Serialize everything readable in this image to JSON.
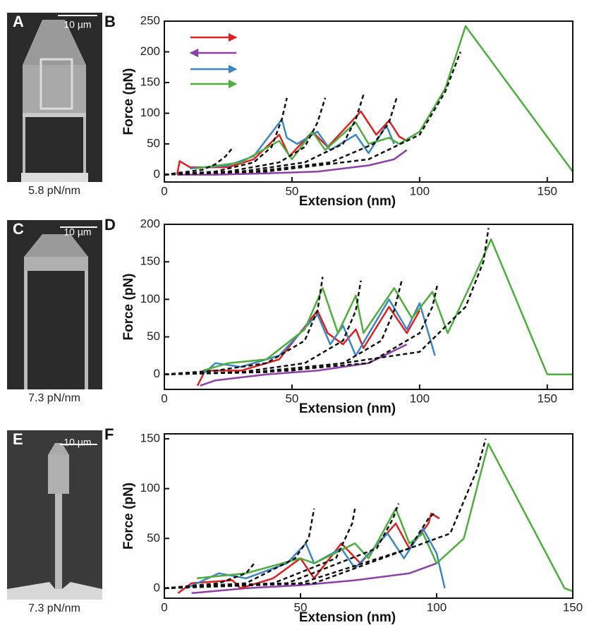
{
  "images": [
    {
      "label": "A",
      "scale": "10 µm",
      "stiffness": "5.8 pN/nm"
    },
    {
      "label": "C",
      "scale": "10 µm",
      "stiffness": "7.3 pN/nm"
    },
    {
      "label": "E",
      "scale": "10 µm",
      "stiffness": "7.3 pN/nm"
    }
  ],
  "chart_data": [
    {
      "type": "line",
      "label": "B",
      "xlabel": "Extension (nm)",
      "ylabel": "Force (pN)",
      "xlim": [
        0,
        160
      ],
      "ylim": [
        -12,
        250
      ],
      "xticks": [
        0,
        50,
        100,
        150
      ],
      "yticks": [
        0,
        50,
        100,
        150,
        200,
        250
      ],
      "series": [
        {
          "color": "#8e3fa8",
          "x": [
            5,
            20,
            40,
            60,
            70,
            80,
            90,
            95
          ],
          "values": [
            0,
            0,
            2,
            5,
            10,
            15,
            25,
            40
          ]
        },
        {
          "color": "#e02020",
          "x": [
            5,
            6,
            10,
            25,
            35,
            45,
            49,
            58,
            64,
            77,
            83,
            88,
            92,
            95
          ],
          "values": [
            0,
            22,
            12,
            12,
            25,
            65,
            30,
            70,
            45,
            103,
            65,
            88,
            62,
            55
          ]
        },
        {
          "color": "#3a86c8",
          "x": [
            10,
            25,
            35,
            46,
            48,
            52,
            60,
            65,
            75,
            80,
            87,
            90
          ],
          "values": [
            10,
            15,
            30,
            90,
            60,
            50,
            70,
            40,
            65,
            35,
            80,
            50
          ]
        },
        {
          "color": "#4caf3c",
          "x": [
            12,
            30,
            45,
            50,
            58,
            63,
            75,
            80,
            88,
            92,
            100,
            110,
            118,
            160
          ],
          "values": [
            10,
            20,
            55,
            25,
            70,
            40,
            85,
            50,
            60,
            50,
            70,
            140,
            242,
            5
          ]
        },
        {
          "color": "#111111",
          "dashed": true,
          "x": [
            0,
            15,
            20,
            24,
            27
          ],
          "values": [
            0,
            8,
            17,
            30,
            45
          ]
        },
        {
          "color": "#111111",
          "dashed": true,
          "x": [
            0,
            20,
            35,
            42,
            46,
            48
          ],
          "values": [
            0,
            5,
            20,
            45,
            90,
            125
          ]
        },
        {
          "color": "#111111",
          "dashed": true,
          "x": [
            0,
            25,
            45,
            55,
            60,
            63
          ],
          "values": [
            0,
            5,
            20,
            45,
            85,
            125
          ]
        },
        {
          "color": "#111111",
          "dashed": true,
          "x": [
            0,
            30,
            55,
            70,
            75,
            78
          ],
          "values": [
            0,
            5,
            20,
            50,
            90,
            130
          ]
        },
        {
          "color": "#111111",
          "dashed": true,
          "x": [
            0,
            35,
            65,
            82,
            88,
            91
          ],
          "values": [
            0,
            5,
            20,
            50,
            85,
            125
          ]
        },
        {
          "color": "#111111",
          "dashed": true,
          "x": [
            0,
            40,
            80,
            100,
            110,
            116
          ],
          "values": [
            0,
            5,
            25,
            65,
            135,
            200
          ]
        }
      ]
    },
    {
      "type": "line",
      "label": "D",
      "xlabel": "Extension (nm)",
      "ylabel": "Force (pN)",
      "xlim": [
        0,
        160
      ],
      "ylim": [
        -20,
        200
      ],
      "xticks": [
        0,
        50,
        100,
        150
      ],
      "yticks": [
        0,
        50,
        100,
        150,
        200
      ],
      "series": [
        {
          "color": "#8e3fa8",
          "x": [
            14,
            20,
            40,
            60,
            80,
            95
          ],
          "values": [
            -15,
            -8,
            0,
            5,
            15,
            40
          ]
        },
        {
          "color": "#e02020",
          "x": [
            13,
            16,
            30,
            45,
            60,
            64,
            70,
            75,
            78,
            88,
            95,
            100
          ],
          "values": [
            -15,
            5,
            5,
            20,
            85,
            55,
            40,
            60,
            35,
            90,
            55,
            85
          ]
        },
        {
          "color": "#3a86c8",
          "x": [
            15,
            20,
            30,
            45,
            60,
            65,
            70,
            75,
            88,
            95,
            100,
            106
          ],
          "values": [
            0,
            15,
            10,
            25,
            80,
            40,
            65,
            25,
            100,
            60,
            95,
            25
          ]
        },
        {
          "color": "#4caf3c",
          "x": [
            15,
            25,
            40,
            55,
            62,
            68,
            75,
            78,
            90,
            97,
            105,
            111,
            120,
            128,
            150,
            160
          ],
          "values": [
            5,
            15,
            20,
            60,
            115,
            55,
            105,
            55,
            115,
            75,
            110,
            55,
            120,
            180,
            0,
            0
          ]
        },
        {
          "color": "#111111",
          "dashed": true,
          "x": [
            0,
            20,
            40,
            55,
            60,
            62
          ],
          "values": [
            0,
            5,
            15,
            45,
            85,
            130
          ]
        },
        {
          "color": "#111111",
          "dashed": true,
          "x": [
            0,
            30,
            55,
            70,
            75,
            77
          ],
          "values": [
            0,
            3,
            15,
            45,
            85,
            125
          ]
        },
        {
          "color": "#111111",
          "dashed": true,
          "x": [
            0,
            35,
            70,
            85,
            90,
            93
          ],
          "values": [
            0,
            3,
            15,
            45,
            85,
            125
          ]
        },
        {
          "color": "#111111",
          "dashed": true,
          "x": [
            0,
            40,
            80,
            100,
            105,
            107
          ],
          "values": [
            0,
            3,
            15,
            55,
            90,
            120
          ]
        },
        {
          "color": "#111111",
          "dashed": true,
          "x": [
            0,
            50,
            100,
            118,
            125,
            127
          ],
          "values": [
            0,
            5,
            30,
            90,
            150,
            195
          ]
        }
      ]
    },
    {
      "type": "line",
      "label": "F",
      "xlabel": "Extension (nm)",
      "ylabel": "Force (pN)",
      "xlim": [
        0,
        150
      ],
      "ylim": [
        -10,
        155
      ],
      "xticks": [
        0,
        50,
        100,
        150
      ],
      "yticks": [
        0,
        50,
        100,
        150
      ],
      "series": [
        {
          "color": "#8e3fa8",
          "x": [
            10,
            30,
            50,
            70,
            90,
            100
          ],
          "values": [
            -5,
            0,
            3,
            8,
            15,
            25
          ]
        },
        {
          "color": "#e02020",
          "x": [
            5,
            10,
            25,
            28,
            40,
            50,
            55,
            65,
            72,
            85,
            90,
            97,
            98,
            101
          ],
          "values": [
            -5,
            5,
            8,
            0,
            10,
            30,
            10,
            45,
            25,
            65,
            40,
            65,
            75,
            70
          ]
        },
        {
          "color": "#3a86c8",
          "x": [
            8,
            20,
            30,
            45,
            52,
            55,
            65,
            70,
            82,
            88,
            95,
            100,
            103
          ],
          "values": [
            0,
            15,
            10,
            25,
            45,
            25,
            40,
            20,
            55,
            30,
            60,
            35,
            0
          ]
        },
        {
          "color": "#4caf3c",
          "x": [
            12,
            30,
            50,
            55,
            70,
            75,
            85,
            90,
            95,
            100,
            110,
            119,
            147,
            150
          ],
          "values": [
            10,
            15,
            30,
            25,
            45,
            30,
            80,
            45,
            55,
            25,
            50,
            145,
            0,
            -3
          ]
        },
        {
          "color": "#111111",
          "dashed": true,
          "x": [
            0,
            20,
            30,
            33
          ],
          "values": [
            0,
            5,
            15,
            25
          ]
        },
        {
          "color": "#111111",
          "dashed": true,
          "x": [
            0,
            30,
            48,
            53,
            55
          ],
          "values": [
            0,
            5,
            30,
            50,
            80
          ]
        },
        {
          "color": "#111111",
          "dashed": true,
          "x": [
            0,
            40,
            63,
            69,
            70
          ],
          "values": [
            0,
            5,
            30,
            65,
            80
          ]
        },
        {
          "color": "#111111",
          "dashed": true,
          "x": [
            0,
            45,
            78,
            84,
            86
          ],
          "values": [
            0,
            5,
            40,
            70,
            85
          ]
        },
        {
          "color": "#111111",
          "dashed": true,
          "x": [
            0,
            50,
            90,
            97,
            99
          ],
          "values": [
            0,
            5,
            40,
            70,
            75
          ]
        },
        {
          "color": "#111111",
          "dashed": true,
          "x": [
            0,
            55,
            105,
            115,
            118
          ],
          "values": [
            0,
            5,
            55,
            120,
            150
          ]
        }
      ]
    }
  ]
}
